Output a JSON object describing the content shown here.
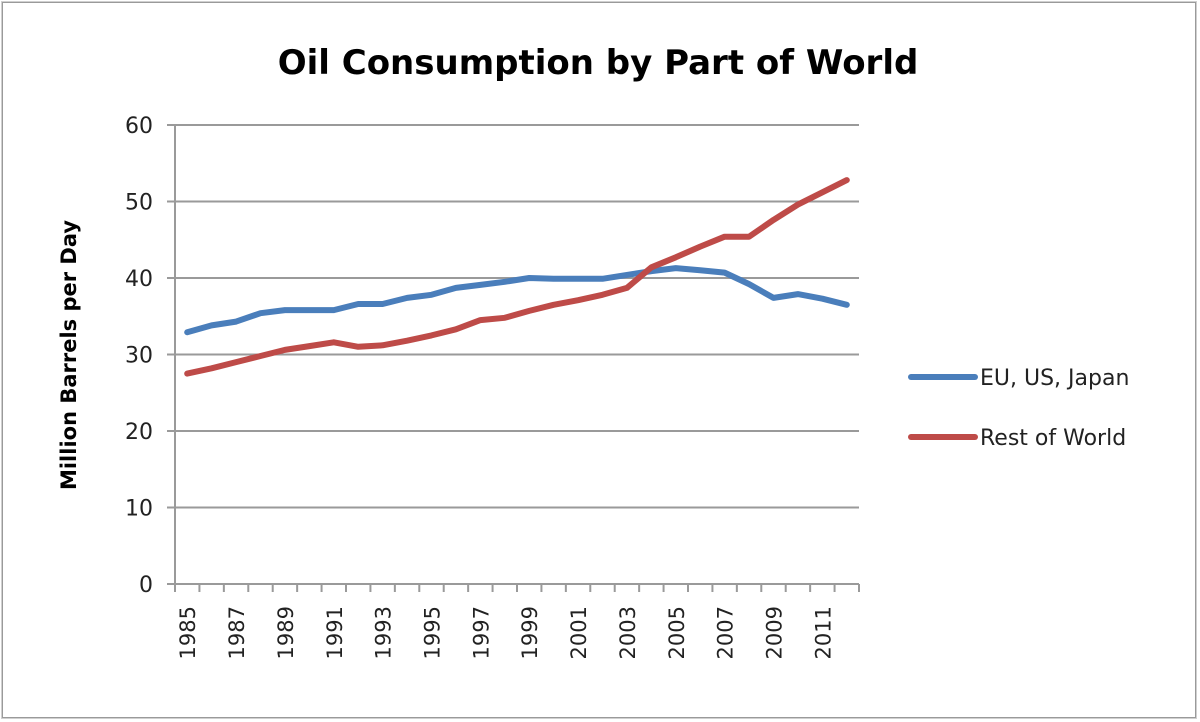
{
  "chart_data": {
    "type": "line",
    "title": "Oil Consumption by Part of World",
    "xlabel": "",
    "ylabel": "Million Barrels per Day",
    "ylim": [
      0,
      60
    ],
    "yticks": [
      0,
      10,
      20,
      30,
      40,
      50,
      60
    ],
    "grid": true,
    "legend_position": "right",
    "x": [
      1985,
      1986,
      1987,
      1988,
      1989,
      1990,
      1991,
      1992,
      1993,
      1994,
      1995,
      1996,
      1997,
      1998,
      1999,
      2000,
      2001,
      2002,
      2003,
      2004,
      2005,
      2006,
      2007,
      2008,
      2009,
      2010,
      2011,
      2012
    ],
    "xtick_labels": [
      "1985",
      "1987",
      "1989",
      "1991",
      "1993",
      "1995",
      "1997",
      "1999",
      "2001",
      "2003",
      "2005",
      "2007",
      "2009",
      "2011"
    ],
    "series": [
      {
        "name": "EU, US, Japan",
        "color": "#4a7ebb",
        "values": [
          32.9,
          33.8,
          34.3,
          35.4,
          35.8,
          35.8,
          35.8,
          36.6,
          36.6,
          37.4,
          37.8,
          38.7,
          39.1,
          39.5,
          40.0,
          39.9,
          39.9,
          39.9,
          40.4,
          40.9,
          41.3,
          41.0,
          40.7,
          39.2,
          37.4,
          37.9,
          37.3,
          36.5
        ]
      },
      {
        "name": "Rest of World",
        "color": "#be4b48",
        "values": [
          27.5,
          28.2,
          29.0,
          29.8,
          30.6,
          31.1,
          31.6,
          31.0,
          31.2,
          31.8,
          32.5,
          33.3,
          34.5,
          34.8,
          35.7,
          36.5,
          37.1,
          37.8,
          38.7,
          41.4,
          42.7,
          44.1,
          45.4,
          45.4,
          47.6,
          49.6,
          51.2,
          52.8
        ]
      }
    ]
  }
}
